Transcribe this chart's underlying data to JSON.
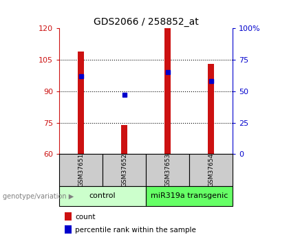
{
  "title": "GDS2066 / 258852_at",
  "samples": [
    "GSM37651",
    "GSM37652",
    "GSM37653",
    "GSM37654"
  ],
  "count_values": [
    109,
    74,
    120,
    103
  ],
  "percentile_values": [
    62,
    47,
    65,
    58
  ],
  "left_ylim": [
    60,
    120
  ],
  "left_yticks": [
    60,
    75,
    90,
    105,
    120
  ],
  "right_ylim": [
    0,
    100
  ],
  "right_yticks": [
    0,
    25,
    50,
    75,
    100
  ],
  "right_yticklabels": [
    "0",
    "25",
    "50",
    "75",
    "100%"
  ],
  "bar_color": "#cc1111",
  "dot_color": "#0000cc",
  "groups": [
    {
      "label": "control",
      "indices": [
        0,
        1
      ],
      "color": "#ccffcc"
    },
    {
      "label": "miR319a transgenic",
      "indices": [
        2,
        3
      ],
      "color": "#66ff66"
    }
  ],
  "group_label_prefix": "genotype/variation",
  "legend_items": [
    {
      "label": "count",
      "color": "#cc1111"
    },
    {
      "label": "percentile rank within the sample",
      "color": "#0000cc"
    }
  ],
  "bar_width": 0.15,
  "left_axis_color": "#cc1111",
  "right_axis_color": "#0000cc",
  "bg_color": "#ffffff",
  "grid_color": "#000000",
  "sample_box_color": "#cccccc",
  "grid_yticks": [
    75,
    90,
    105
  ]
}
